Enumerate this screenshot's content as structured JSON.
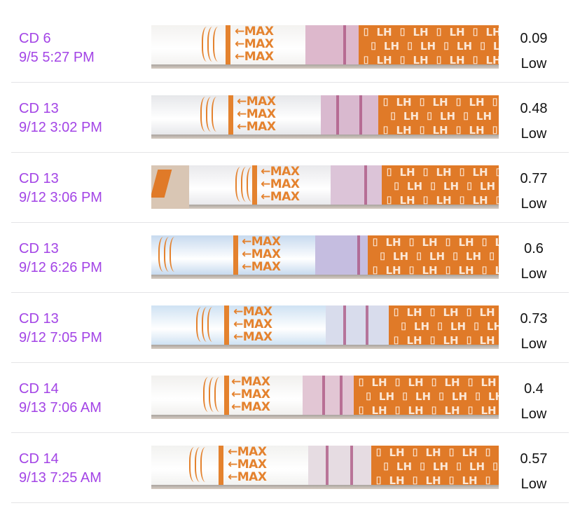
{
  "strip_print": {
    "max": "←MAX",
    "lh": "LH"
  },
  "entries": [
    {
      "cycle_day": "CD 6",
      "datetime": "9/5 5:27 PM",
      "value": "0.09",
      "level": "Low"
    },
    {
      "cycle_day": "CD 13",
      "datetime": "9/12 3:02 PM",
      "value": "0.48",
      "level": "Low"
    },
    {
      "cycle_day": "CD 13",
      "datetime": "9/12 3:06 PM",
      "value": "0.77",
      "level": "Low"
    },
    {
      "cycle_day": "CD 13",
      "datetime": "9/12 6:26 PM",
      "value": "0.6",
      "level": "Low"
    },
    {
      "cycle_day": "CD 13",
      "datetime": "9/12 7:05 PM",
      "value": "0.73",
      "level": "Low"
    },
    {
      "cycle_day": "CD 14",
      "datetime": "9/13 7:06 AM",
      "value": "0.4",
      "level": "Low"
    },
    {
      "cycle_day": "CD 14",
      "datetime": "9/13 7:25 AM",
      "value": "0.57",
      "level": "Low"
    }
  ]
}
